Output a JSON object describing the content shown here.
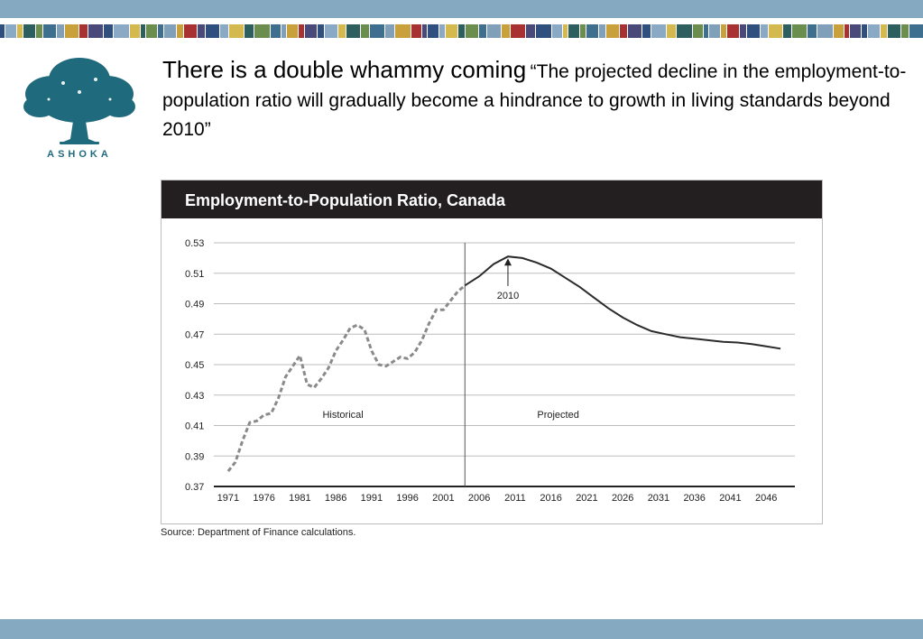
{
  "brand": {
    "name": "ASHOKA",
    "logo_icon": "tree-icon",
    "color": "#1f6a7d"
  },
  "headline": {
    "lead": "There is a double whammy coming",
    "quote": "“The projected decline in the employment-to-population ratio will gradually become a hindrance to growth in living standards beyond 2010”"
  },
  "chart_data": {
    "type": "line",
    "title": "Employment-to-Population Ratio, Canada",
    "xlabel": "",
    "ylabel": "",
    "x_ticks": [
      "1971",
      "1976",
      "1981",
      "1986",
      "1991",
      "1996",
      "2001",
      "2006",
      "2011",
      "2016",
      "2021",
      "2026",
      "2031",
      "2036",
      "2041",
      "2046"
    ],
    "y_ticks": [
      "0.53",
      "0.51",
      "0.49",
      "0.47",
      "0.45",
      "0.43",
      "0.41",
      "0.39",
      "0.37"
    ],
    "xlim": [
      1969,
      2050
    ],
    "ylim": [
      0.37,
      0.53
    ],
    "grid": true,
    "divider_year": 2004,
    "annotations": [
      {
        "text": "Historical",
        "x": 1987,
        "y": 0.415
      },
      {
        "text": "Projected",
        "x": 2017,
        "y": 0.415
      },
      {
        "text": "2010",
        "x": 2010,
        "y": 0.521,
        "label_y": 0.4945
      }
    ],
    "series": [
      {
        "style": "dashed",
        "x": [
          1971,
          1972,
          1973,
          1974,
          1975,
          1976,
          1977,
          1978,
          1979,
          1980,
          1981,
          1982,
          1983,
          1984,
          1985,
          1986,
          1987,
          1988,
          1989,
          1990,
          1991,
          1992,
          1993,
          1994,
          1995,
          1996,
          1997,
          1998,
          1999,
          2000,
          2001,
          2002,
          2003,
          2004
        ],
        "values": [
          0.38,
          0.386,
          0.4,
          0.412,
          0.413,
          0.417,
          0.418,
          0.428,
          0.442,
          0.449,
          0.456,
          0.437,
          0.435,
          0.441,
          0.448,
          0.459,
          0.466,
          0.474,
          0.476,
          0.473,
          0.459,
          0.45,
          0.449,
          0.452,
          0.455,
          0.454,
          0.458,
          0.466,
          0.477,
          0.486,
          0.486,
          0.492,
          0.498,
          0.502
        ]
      },
      {
        "style": "solid",
        "x": [
          2004,
          2006,
          2008,
          2010,
          2012,
          2014,
          2016,
          2018,
          2020,
          2022,
          2024,
          2026,
          2028,
          2030,
          2032,
          2034,
          2036,
          2038,
          2040,
          2042,
          2044,
          2046,
          2048
        ],
        "values": [
          0.502,
          0.508,
          0.516,
          0.521,
          0.52,
          0.517,
          0.513,
          0.507,
          0.501,
          0.494,
          0.487,
          0.481,
          0.476,
          0.472,
          0.47,
          0.468,
          0.467,
          0.466,
          0.465,
          0.4645,
          0.4635,
          0.462,
          0.4605
        ]
      }
    ]
  },
  "source": "Source: Department of Finance calculations."
}
